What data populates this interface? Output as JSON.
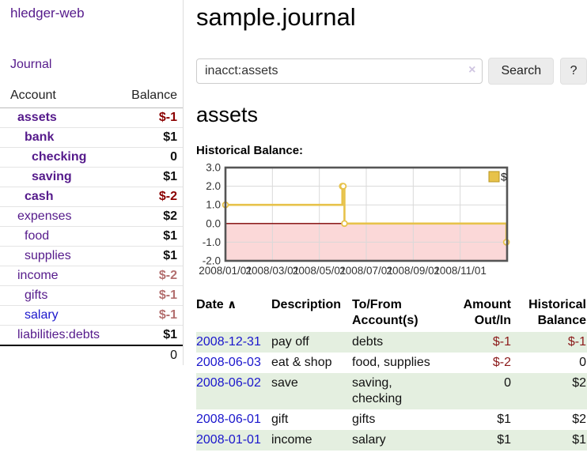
{
  "app": {
    "title": "hledger-web"
  },
  "sidebar": {
    "journal_link": "Journal",
    "accounts": {
      "header_account": "Account",
      "header_balance": "Balance",
      "rows": [
        {
          "name": "assets",
          "depth": 0,
          "bold": true,
          "balance": "$-1",
          "balance_style": "neg-strong",
          "link_style": "visited"
        },
        {
          "name": "bank",
          "depth": 1,
          "bold": true,
          "balance": "$1",
          "balance_style": "normal",
          "link_style": "visited"
        },
        {
          "name": "checking",
          "depth": 2,
          "bold": true,
          "balance": "0",
          "balance_style": "normal",
          "link_style": "visited"
        },
        {
          "name": "saving",
          "depth": 2,
          "bold": true,
          "balance": "$1",
          "balance_style": "normal",
          "link_style": "visited"
        },
        {
          "name": "cash",
          "depth": 1,
          "bold": true,
          "balance": "$-2",
          "balance_style": "neg-strong",
          "link_style": "visited"
        },
        {
          "name": "expenses",
          "depth": 0,
          "bold": false,
          "balance": "$2",
          "balance_style": "normal",
          "link_style": "visited"
        },
        {
          "name": "food",
          "depth": 1,
          "bold": false,
          "balance": "$1",
          "balance_style": "normal",
          "link_style": "visited"
        },
        {
          "name": "supplies",
          "depth": 1,
          "bold": false,
          "balance": "$1",
          "balance_style": "normal",
          "link_style": "visited"
        },
        {
          "name": "income",
          "depth": 0,
          "bold": false,
          "balance": "$-2",
          "balance_style": "neg-weak",
          "link_style": "visited"
        },
        {
          "name": "gifts",
          "depth": 1,
          "bold": false,
          "balance": "$-1",
          "balance_style": "neg-weak",
          "link_style": "visited"
        },
        {
          "name": "salary",
          "depth": 1,
          "bold": false,
          "balance": "$-1",
          "balance_style": "neg-weak",
          "link_style": "unvisited"
        },
        {
          "name": "liabilities:debts",
          "depth": 0,
          "bold": false,
          "balance": "$1",
          "balance_style": "normal",
          "link_style": "visited"
        }
      ],
      "total": "0"
    }
  },
  "header": {
    "page_title": "sample.journal"
  },
  "search": {
    "value": "inacct:assets",
    "clear_icon": "×",
    "button_label": "Search",
    "help_label": "?"
  },
  "account_view": {
    "heading": "assets",
    "chart_title": "Historical Balance:"
  },
  "chart_data": {
    "type": "line",
    "title": "Historical Balance:",
    "step": true,
    "xlim": [
      0,
      12
    ],
    "ylim": [
      -2,
      3
    ],
    "series": [
      {
        "name": "$",
        "color": "#e7c24a",
        "points": [
          {
            "date": "2008-01-01",
            "x": 0,
            "y": 1
          },
          {
            "date": "2008-06-01",
            "x": 4.98,
            "y": 2
          },
          {
            "date": "2008-06-02",
            "x": 5.02,
            "y": 2
          },
          {
            "date": "2008-06-03",
            "x": 5.07,
            "y": 0
          },
          {
            "date": "2008-12-31",
            "x": 11.97,
            "y": -1
          }
        ]
      }
    ],
    "x_ticks": [
      {
        "x": 0,
        "label": "2008/01/01"
      },
      {
        "x": 2,
        "label": "2008/03/01"
      },
      {
        "x": 4,
        "label": "2008/05/01"
      },
      {
        "x": 6,
        "label": "2008/07/01"
      },
      {
        "x": 8,
        "label": "2008/09/01"
      },
      {
        "x": 10,
        "label": "2008/11/01"
      }
    ],
    "y_ticks": [
      {
        "v": 3,
        "label": "3.0"
      },
      {
        "v": 2,
        "label": "2.0"
      },
      {
        "v": 1,
        "label": "1.0"
      },
      {
        "v": 0,
        "label": "0.0"
      },
      {
        "v": -1,
        "label": "-1.0"
      },
      {
        "v": -2,
        "label": "-2.0"
      }
    ],
    "legend": "$",
    "legend_position": "top-right",
    "grid": true,
    "colors": {
      "negative_fill": "#fbd8d8",
      "zero_line": "#7d0000",
      "grid_line": "#d9d9d9",
      "plot_border": "#555555",
      "series": "#e7c24a"
    }
  },
  "register_table": {
    "headers": {
      "date": "Date",
      "sort_icon": "∧",
      "description": "Description",
      "accounts": "To/From\nAccount(s)",
      "amount": "Amount\nOut/In",
      "balance": "Historical\nBalance"
    },
    "rows": [
      {
        "date": "2008-12-31",
        "description": "pay off",
        "accounts": "debts",
        "amount": "$-1",
        "amount_negative": true,
        "balance": "$-1",
        "balance_negative": true,
        "highlighted": true
      },
      {
        "date": "2008-06-03",
        "description": "eat & shop",
        "accounts": "food, supplies",
        "amount": "$-2",
        "amount_negative": true,
        "balance": "0",
        "balance_negative": false,
        "highlighted": false
      },
      {
        "date": "2008-06-02",
        "description": "save",
        "accounts": "saving,\nchecking",
        "amount": "0",
        "amount_negative": false,
        "balance": "$2",
        "balance_negative": false,
        "highlighted": true
      },
      {
        "date": "2008-06-01",
        "description": "gift",
        "accounts": "gifts",
        "amount": "$1",
        "amount_negative": false,
        "balance": "$2",
        "balance_negative": false,
        "highlighted": false
      },
      {
        "date": "2008-01-01",
        "description": "income",
        "accounts": "salary",
        "amount": "$1",
        "amount_negative": false,
        "balance": "$1",
        "balance_negative": false,
        "highlighted": true
      }
    ]
  }
}
